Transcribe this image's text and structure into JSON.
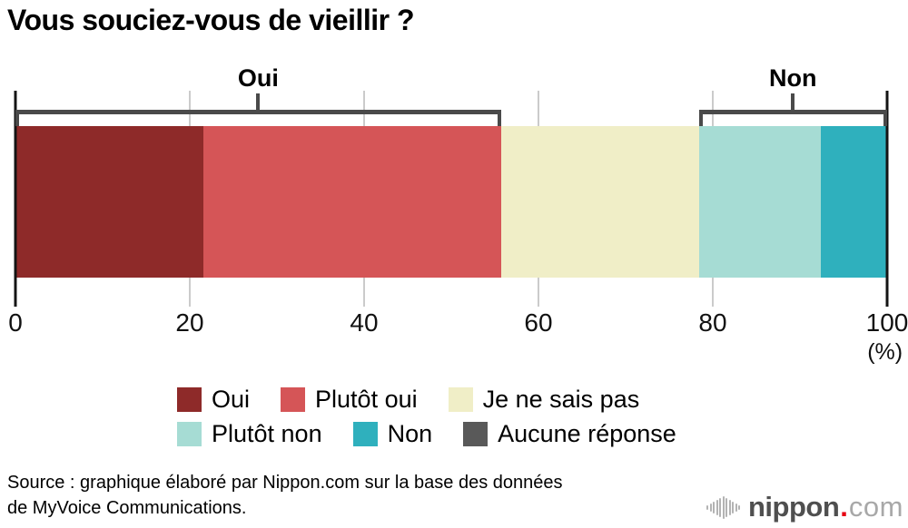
{
  "title": "Vous souciez-vous de vieillir ?",
  "chart_data": {
    "type": "bar",
    "subtype": "stacked-horizontal-single-bar",
    "title": "Vous souciez-vous de vieillir ?",
    "unit": "%",
    "axis": {
      "range": [
        0,
        100
      ],
      "ticks": [
        0,
        20,
        40,
        60,
        80,
        100
      ],
      "unit_label": "(%)",
      "grid": true
    },
    "segments": [
      {
        "label": "Oui",
        "value": 21.6,
        "color": "#8e2a29"
      },
      {
        "label": "Plutôt oui",
        "value": 34.1,
        "color": "#d55557"
      },
      {
        "label": "Je ne sais pas",
        "value": 22.7,
        "color": "#f0eec7"
      },
      {
        "label": "Plutôt non",
        "value": 14.0,
        "color": "#a6dcd4"
      },
      {
        "label": "Non",
        "value": 7.6,
        "color": "#2fb0bd"
      },
      {
        "label": "Aucune réponse",
        "value": 0.0,
        "color": "#595959"
      }
    ],
    "brackets": [
      {
        "label": "Oui",
        "from_pct": 0,
        "to_pct": 55.7
      },
      {
        "label": "Non",
        "from_pct": 78.4,
        "to_pct": 100
      }
    ],
    "legend_position": "bottom",
    "colors": {
      "bracket": "#4a4a4a",
      "grid_line": "#cbcbcb",
      "axis_line": "#141414"
    }
  },
  "source": {
    "line1": "Source : graphique élaboré par Nippon.com sur la base des données",
    "line2": "de MyVoice Communications."
  },
  "logo": {
    "wordmark": "nippon",
    "dot": ".",
    "tld": "com",
    "word_color": "#4f4f4f",
    "dot_color": "#e60013",
    "tld_color": "#a8a8a8"
  }
}
